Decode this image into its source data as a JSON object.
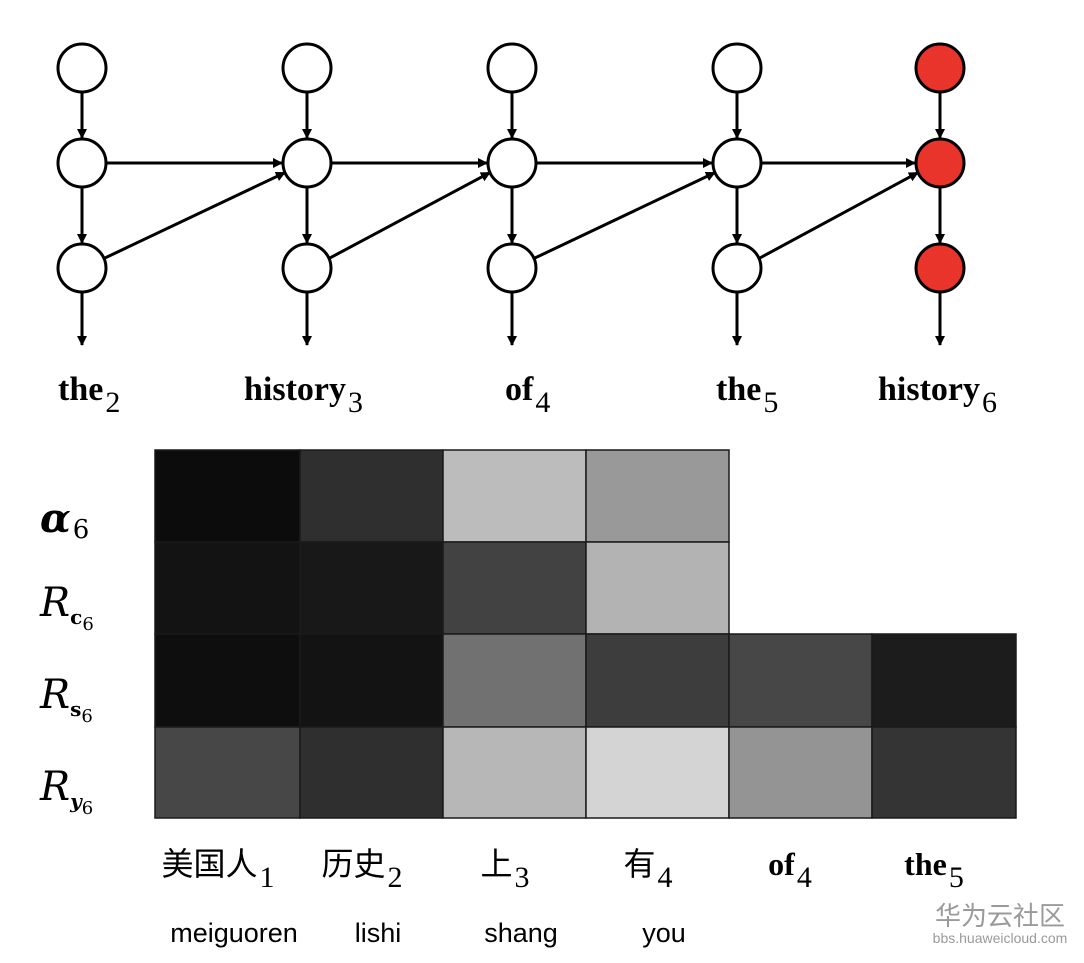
{
  "colors": {
    "node_fill": "#ffffff",
    "node_active": "#e8342a",
    "line": "#000000",
    "watermark": "#9a9a9a"
  },
  "decoder_steps": [
    {
      "word": "the",
      "index": "2",
      "active": false,
      "from_hidden": false
    },
    {
      "word": "history",
      "index": "3",
      "active": false,
      "from_hidden": true
    },
    {
      "word": "of",
      "index": "4",
      "active": false,
      "from_hidden": true
    },
    {
      "word": "the",
      "index": "5",
      "active": false,
      "from_hidden": true
    },
    {
      "word": "history",
      "index": "6",
      "active": true,
      "from_hidden": true
    }
  ],
  "heatmap": {
    "rows": [
      {
        "symbol": "α",
        "sub": "6",
        "sub_pre": "",
        "sub_style": "plain",
        "bold_symbol": true
      },
      {
        "symbol": "R",
        "sub": "6",
        "sub_pre": "c",
        "sub_style": "bold",
        "bold_symbol": false
      },
      {
        "symbol": "R",
        "sub": "6",
        "sub_pre": "s",
        "sub_style": "bold",
        "bold_symbol": false
      },
      {
        "symbol": "R",
        "sub": "6",
        "sub_pre": "y",
        "sub_style": "bolditalic",
        "bold_symbol": false
      }
    ],
    "columns": [
      {
        "label": "美国人",
        "index": "1",
        "pinyin": "meiguoren",
        "script": "zh"
      },
      {
        "label": "历史",
        "index": "2",
        "pinyin": "lishi",
        "script": "zh"
      },
      {
        "label": "上",
        "index": "3",
        "pinyin": "shang",
        "script": "zh"
      },
      {
        "label": "有",
        "index": "4",
        "pinyin": "you",
        "script": "zh"
      },
      {
        "label": "of",
        "index": "4",
        "pinyin": "",
        "script": "en"
      },
      {
        "label": "the",
        "index": "5",
        "pinyin": "",
        "script": "en"
      }
    ],
    "values": [
      [
        0.05,
        0.2,
        0.8,
        0.65,
        null,
        null
      ],
      [
        0.08,
        0.1,
        0.28,
        0.76,
        null,
        null
      ],
      [
        0.06,
        0.08,
        0.48,
        0.26,
        0.3,
        0.12
      ],
      [
        0.3,
        0.2,
        0.78,
        0.9,
        0.63,
        0.22
      ]
    ]
  },
  "watermark": {
    "brand": "华为云社区",
    "url": "bbs.huaweicloud.com"
  }
}
